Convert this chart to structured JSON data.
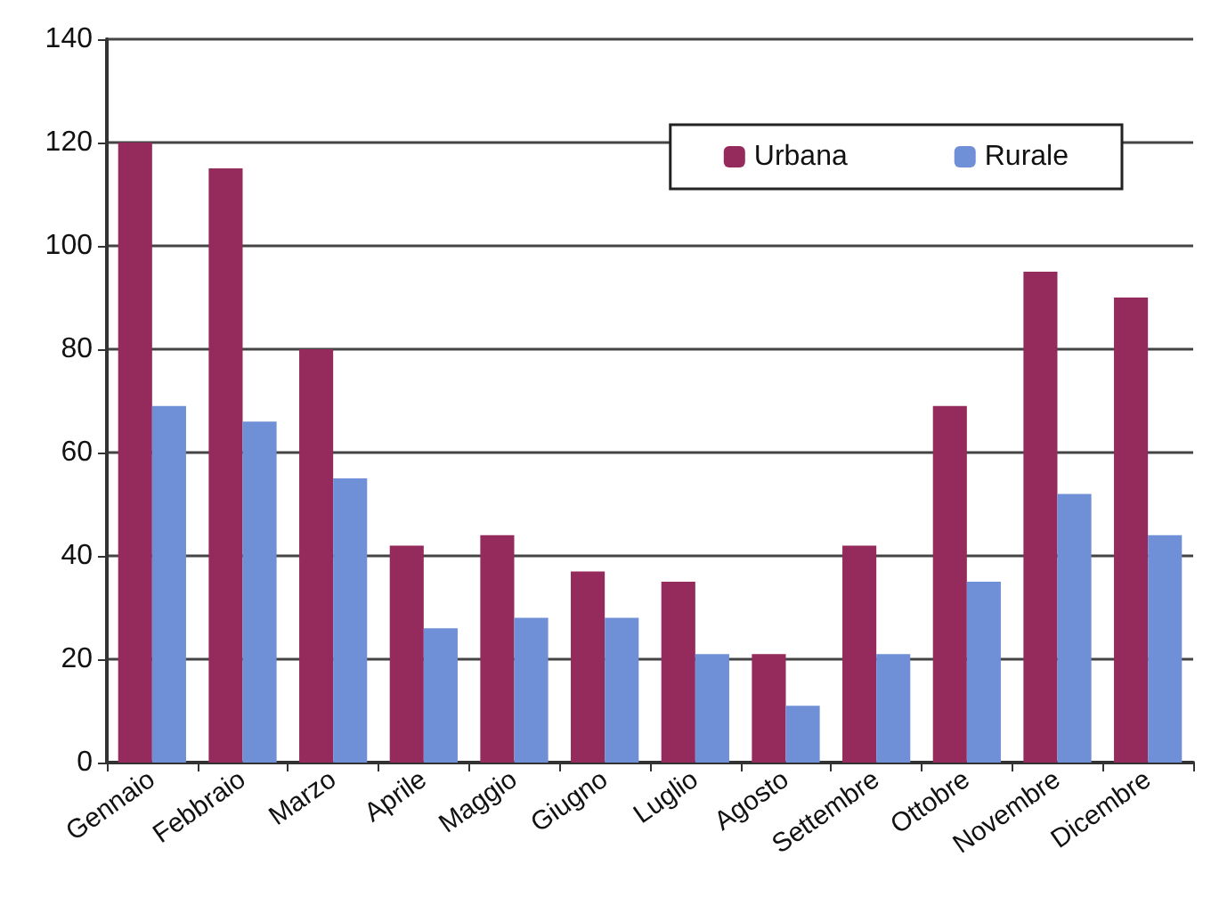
{
  "chart_data": {
    "type": "bar",
    "categories": [
      "Gennaio",
      "Febbraio",
      "Marzo",
      "Aprile",
      "Maggio",
      "Giugno",
      "Luglio",
      "Agosto",
      "Settembre",
      "Ottobre",
      "Novembre",
      "Dicembre"
    ],
    "series": [
      {
        "name": "Urbana",
        "color": "#952a5c",
        "values": [
          120,
          115,
          80,
          42,
          44,
          37,
          35,
          21,
          42,
          69,
          95,
          90
        ]
      },
      {
        "name": "Rurale",
        "color": "#6f8fd6",
        "values": [
          69,
          66,
          55,
          26,
          28,
          28,
          21,
          11,
          21,
          35,
          52,
          44
        ]
      }
    ],
    "ylim": [
      0,
      140
    ],
    "yticks": [
      0,
      20,
      40,
      60,
      80,
      100,
      120,
      140
    ],
    "grid": "y",
    "legend": "top right"
  }
}
